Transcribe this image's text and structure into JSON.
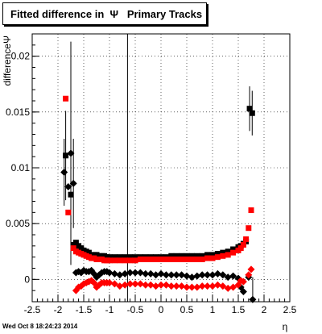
{
  "title": "Fitted difference in  Ψ   Primary Tracks",
  "footer": "Wed Oct  8 18:24:23 2014",
  "chart_data": {
    "type": "scatter",
    "title": "Fitted difference in  Ψ   Primary Tracks",
    "xlabel": "η",
    "ylabel": "differenceΨ",
    "xlim": [
      -2.5,
      2.5
    ],
    "ylim": [
      -0.002,
      0.022
    ],
    "x_ticks": [
      "-2.5",
      "-2",
      "-1.5",
      "-1",
      "-0.5",
      "0",
      "0.5",
      "1",
      "1.5",
      "2",
      "2.5"
    ],
    "y_ticks": [
      "0",
      "0.005",
      "0.01",
      "0.015",
      "0.02"
    ],
    "grid": true,
    "series": [
      {
        "color": "#000000",
        "marker": "square",
        "points": [
          [
            -1.85,
            0.0111
          ],
          [
            -1.75,
            0.0076
          ],
          [
            -1.7,
            0.0031
          ],
          [
            -1.65,
            0.0033
          ],
          [
            -1.6,
            0.003
          ],
          [
            -1.55,
            0.0028
          ],
          [
            -1.5,
            0.0026
          ],
          [
            -1.45,
            0.0025
          ],
          [
            -1.4,
            0.0024
          ],
          [
            -1.35,
            0.0022
          ],
          [
            -1.3,
            0.0022
          ],
          [
            -1.25,
            0.0022
          ],
          [
            -1.2,
            0.0021
          ],
          [
            -1.15,
            0.0021
          ],
          [
            -1.1,
            0.0021
          ],
          [
            -1.05,
            0.002
          ],
          [
            -1.0,
            0.002
          ],
          [
            -0.9,
            0.002
          ],
          [
            -0.8,
            0.002
          ],
          [
            -0.7,
            0.002
          ],
          [
            -0.6,
            0.002
          ],
          [
            -0.5,
            0.002
          ],
          [
            -0.4,
            0.002
          ],
          [
            -0.3,
            0.002
          ],
          [
            -0.2,
            0.002
          ],
          [
            -0.1,
            0.002
          ],
          [
            0.0,
            0.002
          ],
          [
            0.1,
            0.002
          ],
          [
            0.2,
            0.0021
          ],
          [
            0.3,
            0.0021
          ],
          [
            0.4,
            0.0021
          ],
          [
            0.5,
            0.0021
          ],
          [
            0.6,
            0.0021
          ],
          [
            0.7,
            0.0021
          ],
          [
            0.8,
            0.0021
          ],
          [
            0.9,
            0.0022
          ],
          [
            1.0,
            0.0022
          ],
          [
            1.1,
            0.0023
          ],
          [
            1.2,
            0.0024
          ],
          [
            1.3,
            0.0025
          ],
          [
            1.4,
            0.0027
          ],
          [
            1.5,
            0.0029
          ],
          [
            1.55,
            0.003
          ],
          [
            1.6,
            0.0032
          ],
          [
            1.65,
            0.0034
          ],
          [
            1.72,
            0.0153
          ],
          [
            1.77,
            0.0149
          ]
        ],
        "errors": [
          [
            -1.85,
            0.004
          ],
          [
            -1.75,
            0.003
          ],
          [
            1.72,
            0.002
          ],
          [
            1.77,
            0.002
          ]
        ]
      },
      {
        "color": "#ff0000",
        "marker": "square",
        "points": [
          [
            -1.85,
            0.0162
          ],
          [
            -1.8,
            0.006
          ],
          [
            -1.7,
            0.0028
          ],
          [
            -1.65,
            0.0025
          ],
          [
            -1.6,
            0.0024
          ],
          [
            -1.55,
            0.0023
          ],
          [
            -1.5,
            0.0022
          ],
          [
            -1.45,
            0.0021
          ],
          [
            -1.4,
            0.002
          ],
          [
            -1.35,
            0.0019
          ],
          [
            -1.3,
            0.0019
          ],
          [
            -1.25,
            0.0018
          ],
          [
            -1.2,
            0.0018
          ],
          [
            -1.15,
            0.0018
          ],
          [
            -1.1,
            0.0017
          ],
          [
            -1.05,
            0.0017
          ],
          [
            -1.0,
            0.0017
          ],
          [
            -0.9,
            0.0017
          ],
          [
            -0.8,
            0.0017
          ],
          [
            -0.7,
            0.0017
          ],
          [
            -0.6,
            0.0017
          ],
          [
            -0.5,
            0.0017
          ],
          [
            -0.4,
            0.0018
          ],
          [
            -0.3,
            0.0018
          ],
          [
            -0.2,
            0.0018
          ],
          [
            -0.1,
            0.0018
          ],
          [
            0.0,
            0.0018
          ],
          [
            0.1,
            0.0018
          ],
          [
            0.2,
            0.0018
          ],
          [
            0.3,
            0.0018
          ],
          [
            0.4,
            0.0018
          ],
          [
            0.5,
            0.0018
          ],
          [
            0.6,
            0.0018
          ],
          [
            0.7,
            0.0018
          ],
          [
            0.8,
            0.0018
          ],
          [
            0.9,
            0.0019
          ],
          [
            1.0,
            0.0019
          ],
          [
            1.1,
            0.002
          ],
          [
            1.2,
            0.0021
          ],
          [
            1.3,
            0.0022
          ],
          [
            1.4,
            0.0024
          ],
          [
            1.5,
            0.0026
          ],
          [
            1.55,
            0.0028
          ],
          [
            1.6,
            0.0031
          ],
          [
            1.65,
            0.0036
          ],
          [
            1.7,
            0.0046
          ],
          [
            1.75,
            0.0062
          ]
        ]
      },
      {
        "color": "#000000",
        "marker": "diamond",
        "points": [
          [
            -1.88,
            0.0096
          ],
          [
            -1.8,
            0.0083
          ],
          [
            -1.75,
            0.0113
          ],
          [
            -1.7,
            0.0086
          ],
          [
            -1.65,
            0.0006
          ],
          [
            -1.6,
            0.0007
          ],
          [
            -1.55,
            0.0006
          ],
          [
            -1.5,
            0.0008
          ],
          [
            -1.45,
            0.0007
          ],
          [
            -1.4,
            0.0007
          ],
          [
            -1.35,
            0.0008
          ],
          [
            -1.3,
            0.0005
          ],
          [
            -1.25,
            0.0002
          ],
          [
            -1.2,
            0.0004
          ],
          [
            -1.15,
            0.0006
          ],
          [
            -1.1,
            0.0007
          ],
          [
            -1.05,
            0.0007
          ],
          [
            -1.0,
            0.0006
          ],
          [
            -0.9,
            0.0005
          ],
          [
            -0.8,
            0.0004
          ],
          [
            -0.7,
            0.0005
          ],
          [
            -0.6,
            0.0006
          ],
          [
            -0.5,
            0.0006
          ],
          [
            -0.4,
            0.0006
          ],
          [
            -0.3,
            0.0005
          ],
          [
            -0.2,
            0.0005
          ],
          [
            -0.1,
            0.0004
          ],
          [
            0.0,
            0.0005
          ],
          [
            0.1,
            0.0004
          ],
          [
            0.2,
            0.0004
          ],
          [
            0.3,
            0.0004
          ],
          [
            0.4,
            0.0004
          ],
          [
            0.5,
            0.0003
          ],
          [
            0.6,
            0.0002
          ],
          [
            0.7,
            0.0003
          ],
          [
            0.8,
            0.0004
          ],
          [
            0.9,
            0.0004
          ],
          [
            1.0,
            0.0004
          ],
          [
            1.1,
            0.0005
          ],
          [
            1.2,
            0.0004
          ],
          [
            1.3,
            0.0002
          ],
          [
            1.4,
            0.0003
          ],
          [
            1.5,
            0.0001
          ],
          [
            1.55,
            -0.0007
          ],
          [
            1.6,
            -0.0011
          ],
          [
            1.7,
            0.0002
          ],
          [
            1.78,
            -0.0018
          ]
        ],
        "errors": [
          [
            -1.88,
            0.003
          ],
          [
            -1.75,
            0.01
          ],
          [
            -1.7,
            0.004
          ],
          [
            1.78,
            0.002
          ]
        ]
      },
      {
        "color": "#ff0000",
        "marker": "diamond",
        "points": [
          [
            -1.65,
            -0.001
          ],
          [
            -1.6,
            -0.0007
          ],
          [
            -1.55,
            -0.0006
          ],
          [
            -1.5,
            -0.0004
          ],
          [
            -1.45,
            -0.0003
          ],
          [
            -1.4,
            -0.0002
          ],
          [
            -1.35,
            -0.0001
          ],
          [
            -1.3,
            -0.0003
          ],
          [
            -1.25,
            -0.0007
          ],
          [
            -1.2,
            -0.0005
          ],
          [
            -1.15,
            -0.0003
          ],
          [
            -1.1,
            -0.0003
          ],
          [
            -1.05,
            -0.0003
          ],
          [
            -1.0,
            -0.0003
          ],
          [
            -0.9,
            -0.0004
          ],
          [
            -0.8,
            -0.0006
          ],
          [
            -0.7,
            -0.0005
          ],
          [
            -0.6,
            -0.0004
          ],
          [
            -0.5,
            -0.0004
          ],
          [
            -0.4,
            -0.0004
          ],
          [
            -0.3,
            -0.0005
          ],
          [
            -0.2,
            -0.0005
          ],
          [
            -0.1,
            -0.0006
          ],
          [
            0.0,
            -0.0005
          ],
          [
            0.1,
            -0.0005
          ],
          [
            0.2,
            -0.0006
          ],
          [
            0.3,
            -0.0006
          ],
          [
            0.4,
            -0.0006
          ],
          [
            0.5,
            -0.0007
          ],
          [
            0.6,
            -0.0007
          ],
          [
            0.7,
            -0.0007
          ],
          [
            0.8,
            -0.0006
          ],
          [
            0.9,
            -0.0006
          ],
          [
            1.0,
            -0.0006
          ],
          [
            1.1,
            -0.0005
          ],
          [
            1.2,
            -0.0006
          ],
          [
            1.3,
            -0.0008
          ],
          [
            1.4,
            -0.0007
          ],
          [
            1.5,
            -0.0005
          ],
          [
            1.55,
            -0.0001
          ],
          [
            1.6,
            -0.0002
          ],
          [
            1.7,
            0.0004
          ],
          [
            1.75,
            0.0009
          ]
        ]
      }
    ]
  }
}
